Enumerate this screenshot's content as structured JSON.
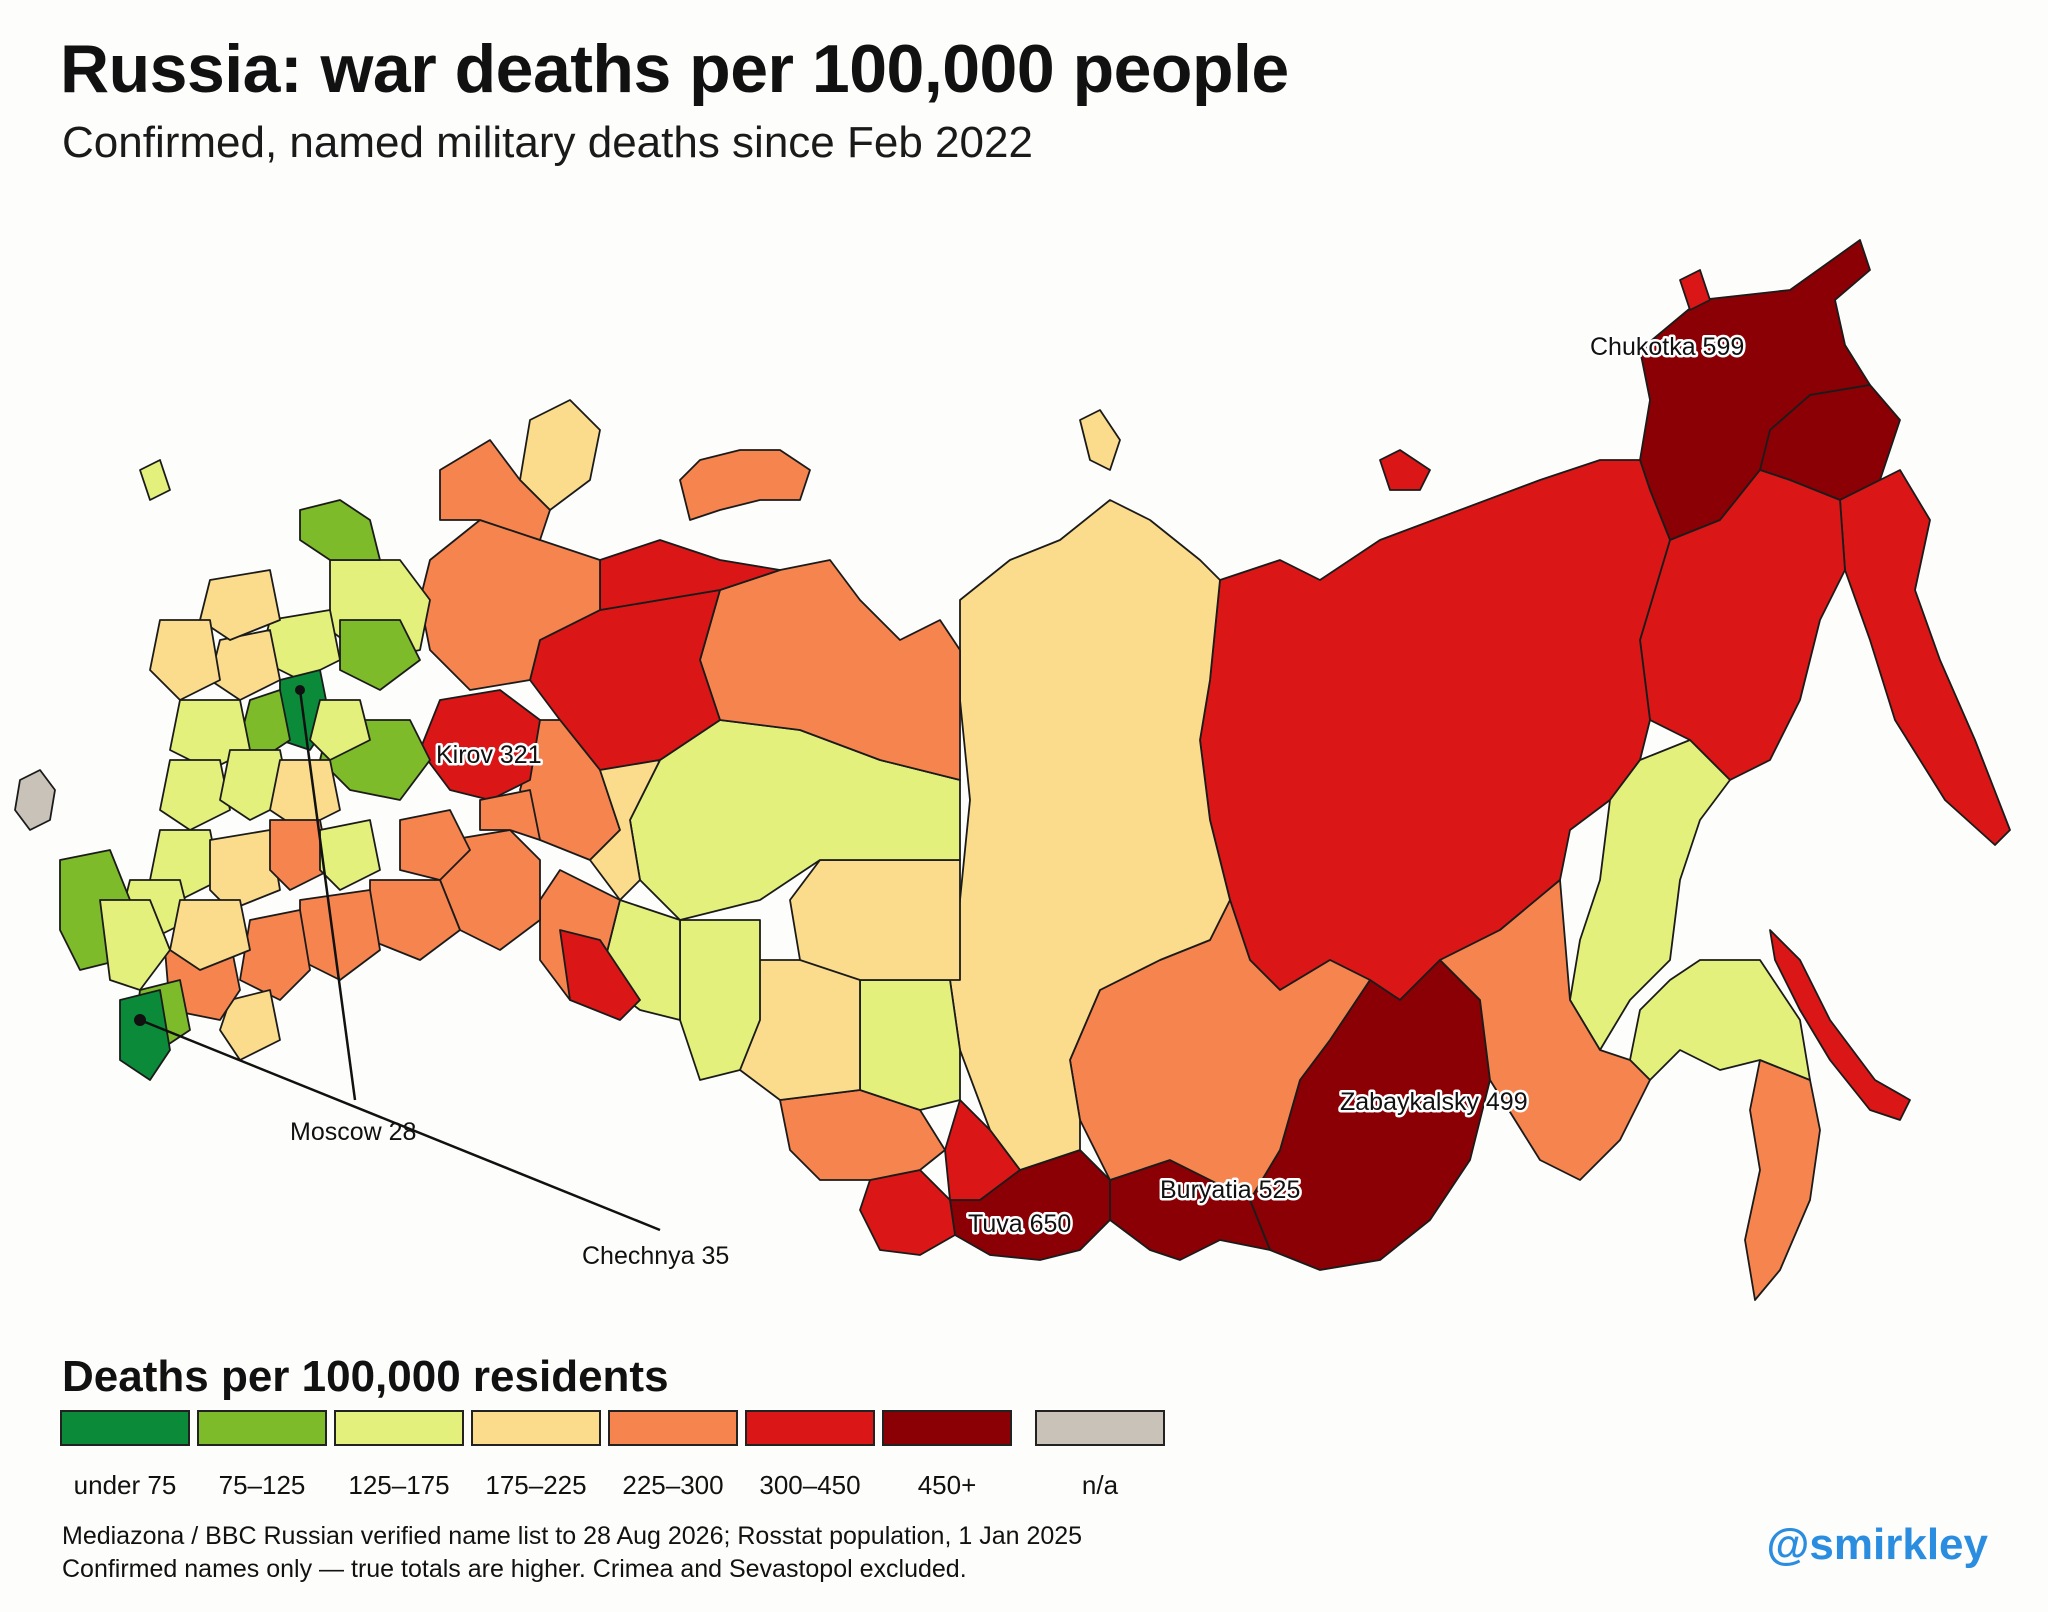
{
  "header": {
    "title": "Russia: war deaths per 100,000 people",
    "subtitle": "Confirmed, named military deaths since Feb 2022"
  },
  "colors": {
    "under_75": "#0b8a3a",
    "75_125": "#7dbb2a",
    "125_175": "#e4f07c",
    "175_225": "#fbdc8c",
    "225_300": "#f6844f",
    "300_450": "#da1616",
    "450_plus": "#8a0005",
    "na": "#c9c2b8",
    "border": "#1b1b1b",
    "handle": "#2a8de0"
  },
  "map": {
    "labels": [
      {
        "text": "Chukotka 599"
      },
      {
        "text": "Kirov 321"
      },
      {
        "text": "Zabaykalsky 499"
      },
      {
        "text": "Buryatia 525"
      },
      {
        "text": "Tuva 650"
      },
      {
        "text": "Moscow 28"
      },
      {
        "text": "Chechnya 35"
      }
    ]
  },
  "legend": {
    "title": "Deaths per 100,000 residents",
    "items": [
      {
        "label": "under 75",
        "color": "#0b8a3a"
      },
      {
        "label": "75–125",
        "color": "#7dbb2a"
      },
      {
        "label": "125–175",
        "color": "#e4f07c"
      },
      {
        "label": "175–225",
        "color": "#fbdc8c"
      },
      {
        "label": "225–300",
        "color": "#f6844f"
      },
      {
        "label": "300–450",
        "color": "#da1616"
      },
      {
        "label": "450+",
        "color": "#8a0005"
      },
      {
        "label": "n/a",
        "color": "#c9c2b8"
      }
    ]
  },
  "source": {
    "line1": "Mediazona / BBC Russian verified name list to 28 Aug 2026; Rosstat population, 1 Jan 2025",
    "line2": "Confirmed names only — true totals are higher. Crimea and Sevastopol excluded."
  },
  "handle": "@smirkley"
}
